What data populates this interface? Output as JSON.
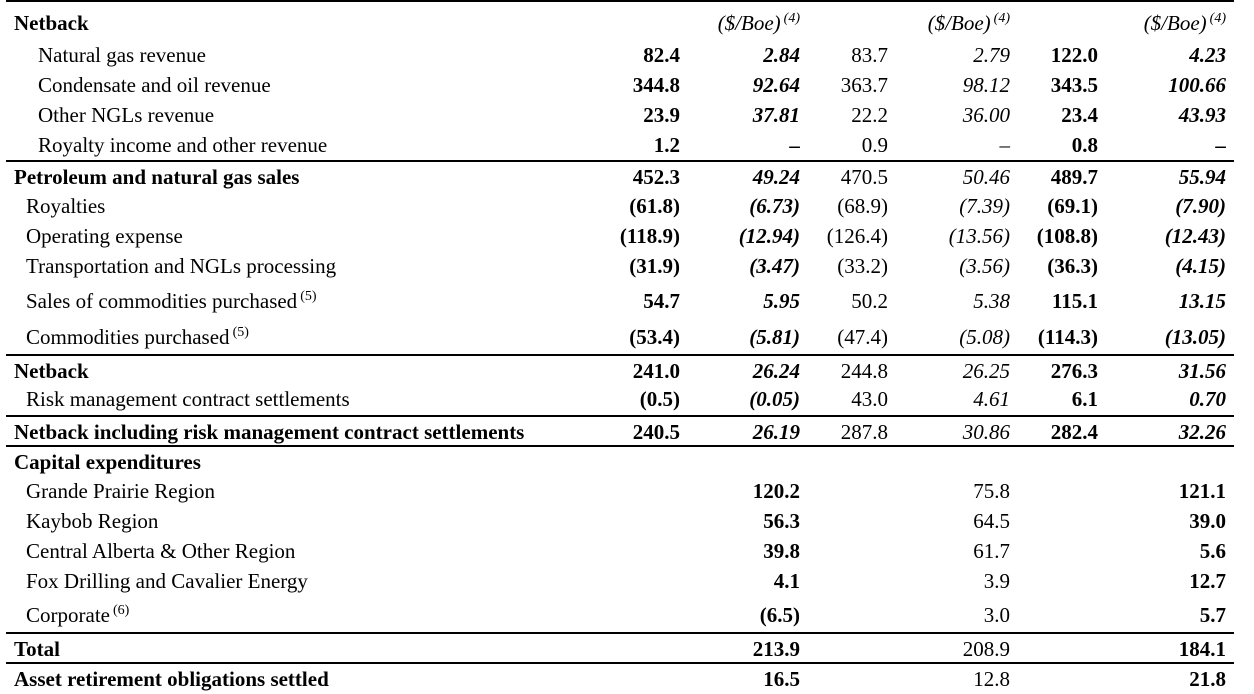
{
  "unit_header": "($/Boe)",
  "unit_footnote": "(4)",
  "sections": {
    "netback_title": "Netback",
    "capex_title": "Capital expenditures",
    "total_label": "Total",
    "aro_label": "Asset retirement obligations settled"
  },
  "rows": [
    {
      "label": "Natural gas revenue",
      "v": [
        "82.4",
        "2.84",
        "83.7",
        "2.79",
        "122.0",
        "4.23"
      ]
    },
    {
      "label": "Condensate and oil revenue",
      "v": [
        "344.8",
        "92.64",
        "363.7",
        "98.12",
        "343.5",
        "100.66"
      ]
    },
    {
      "label": "Other NGLs revenue",
      "v": [
        "23.9",
        "37.81",
        "22.2",
        "36.00",
        "23.4",
        "43.93"
      ]
    },
    {
      "label": "Royalty income and other revenue",
      "v": [
        "1.2",
        "–",
        "0.9",
        "–",
        "0.8",
        "–"
      ]
    },
    {
      "label": "Petroleum and natural gas sales",
      "v": [
        "452.3",
        "49.24",
        "470.5",
        "50.46",
        "489.7",
        "55.94"
      ]
    },
    {
      "label": "Royalties",
      "v": [
        "(61.8)",
        "(6.73)",
        "(68.9)",
        "(7.39)",
        "(69.1)",
        "(7.90)"
      ]
    },
    {
      "label": "Operating expense",
      "v": [
        "(118.9)",
        "(12.94)",
        "(126.4)",
        "(13.56)",
        "(108.8)",
        "(12.43)"
      ]
    },
    {
      "label": "Transportation and NGLs processing",
      "v": [
        "(31.9)",
        "(3.47)",
        "(33.2)",
        "(3.56)",
        "(36.3)",
        "(4.15)"
      ]
    },
    {
      "label": "Sales of commodities purchased",
      "note": "(5)",
      "v": [
        "54.7",
        "5.95",
        "50.2",
        "5.38",
        "115.1",
        "13.15"
      ]
    },
    {
      "label": "Commodities purchased",
      "note": "(5)",
      "v": [
        "(53.4)",
        "(5.81)",
        "(47.4)",
        "(5.08)",
        "(114.3)",
        "(13.05)"
      ]
    },
    {
      "label": "Netback",
      "v": [
        "241.0",
        "26.24",
        "244.8",
        "26.25",
        "276.3",
        "31.56"
      ]
    },
    {
      "label": "Risk management contract settlements",
      "v": [
        "(0.5)",
        "(0.05)",
        "43.0",
        "4.61",
        "6.1",
        "0.70"
      ]
    },
    {
      "label": "Netback including risk management contract settlements",
      "v": [
        "240.5",
        "26.19",
        "287.8",
        "30.86",
        "282.4",
        "32.26"
      ]
    }
  ],
  "capex_rows": [
    {
      "label": "Grande Prairie Region",
      "v": [
        "120.2",
        "75.8",
        "121.1"
      ]
    },
    {
      "label": "Kaybob Region",
      "v": [
        "56.3",
        "64.5",
        "39.0"
      ]
    },
    {
      "label": "Central Alberta & Other Region",
      "v": [
        "39.8",
        "61.7",
        "5.6"
      ]
    },
    {
      "label": "Fox Drilling and Cavalier Energy",
      "v": [
        "4.1",
        "3.9",
        "12.7"
      ]
    },
    {
      "label": "Corporate",
      "note": "(6)",
      "v": [
        "(6.5)",
        "3.0",
        "5.7"
      ]
    }
  ],
  "total_values": [
    "213.9",
    "208.9",
    "184.1"
  ],
  "aro_values": [
    "16.5",
    "12.8",
    "21.8"
  ]
}
